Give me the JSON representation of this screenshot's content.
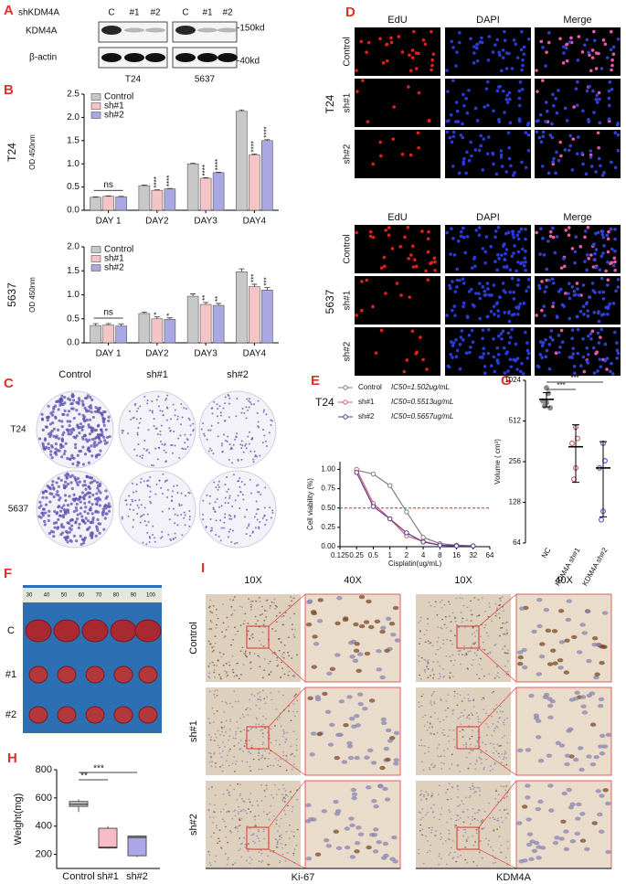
{
  "chart_data": [
    {
      "type": "bar",
      "panel": "B",
      "side_label": "T24",
      "y_label": "OD 450nm",
      "categories": [
        "DAY 1",
        "DAY2",
        "DAY3",
        "DAY4"
      ],
      "series": [
        {
          "name": "Control",
          "color": "#c8c8c8",
          "values": [
            0.28,
            0.53,
            1.0,
            2.13
          ],
          "errors": [
            0.01,
            0.01,
            0.01,
            0.03
          ],
          "sig_labels": [
            null,
            null,
            null,
            null
          ]
        },
        {
          "name": "sh#1",
          "color": "#f5c4c6",
          "values": [
            0.3,
            0.43,
            0.69,
            1.19
          ],
          "errors": [
            0.01,
            0.01,
            0.01,
            0.02
          ],
          "sig_labels": [
            null,
            "****",
            "****",
            "****"
          ]
        },
        {
          "name": "sh#2",
          "color": "#aaa8e2",
          "values": [
            0.29,
            0.46,
            0.81,
            1.5
          ],
          "errors": [
            0.01,
            0.01,
            0.01,
            0.02
          ],
          "sig_labels": [
            null,
            "****",
            "****",
            "****"
          ]
        }
      ],
      "ylim": [
        0,
        2.5
      ],
      "yticks": [
        {
          "value": 0,
          "label": "0.0"
        },
        0.5,
        {
          "value": 1,
          "label": "1.0"
        },
        1.5,
        {
          "value": 2,
          "label": "2.0"
        },
        2.5
      ],
      "annotations": [
        "ns"
      ]
    },
    {
      "type": "bar",
      "side_label": "5637",
      "y_label": "OD 450nm",
      "categories": [
        "DAY 1",
        "DAY2",
        "DAY3",
        "DAY4"
      ],
      "series": [
        {
          "name": "Control",
          "color": "#c8c8c8",
          "values": [
            0.36,
            0.61,
            0.97,
            1.48
          ],
          "errors": [
            0.04,
            0.03,
            0.05,
            0.06
          ],
          "sig_labels": [
            null,
            null,
            null,
            null
          ]
        },
        {
          "name": "sh#1",
          "color": "#f5c4c6",
          "values": [
            0.37,
            0.5,
            0.8,
            1.17
          ],
          "errors": [
            0.03,
            0.04,
            0.04,
            0.05
          ],
          "sig_labels": [
            null,
            "*",
            "**",
            "***"
          ]
        },
        {
          "name": "sh#2",
          "color": "#aaa8e2",
          "values": [
            0.35,
            0.49,
            0.78,
            1.1
          ],
          "errors": [
            0.04,
            0.03,
            0.04,
            0.05
          ],
          "sig_labels": [
            null,
            "*",
            "**",
            "***"
          ]
        }
      ],
      "ylim": [
        0,
        2.0
      ],
      "yticks": [
        {
          "value": 0,
          "label": "0.0"
        },
        0.5,
        {
          "value": 1,
          "label": "1.0"
        },
        1.5,
        {
          "value": 2,
          "label": "2.0"
        }
      ],
      "annotations": [
        "ns"
      ]
    },
    {
      "type": "line",
      "panel": "E",
      "title": "T24",
      "x_label": "Cisplatin(ug/mL)",
      "y_label": "Cell viability (%)",
      "log_x": true,
      "x": [
        0.25,
        0.5,
        1,
        2,
        4,
        8,
        16,
        32
      ],
      "series": [
        {
          "name": "Control",
          "ic50_label": "IC50=1.502ug/mL",
          "color": "#7f7f7f",
          "values": [
            0.99,
            0.94,
            0.79,
            0.45,
            0.12,
            0.04,
            0.02,
            0.01
          ]
        },
        {
          "name": "sh#1",
          "ic50_label": "IC50=0.5513ug/mL",
          "color": "#d0606e",
          "values": [
            1.0,
            0.56,
            0.36,
            0.14,
            0.07,
            0.02,
            0.01,
            0.01
          ]
        },
        {
          "name": "sh#2",
          "ic50_label": "IC50=0.5657ug/mL",
          "color": "#5b3a8c",
          "values": [
            0.96,
            0.52,
            0.36,
            0.18,
            0.06,
            0.02,
            0.01,
            0.01
          ]
        }
      ],
      "xlim": [
        0.125,
        64
      ],
      "xticks": [
        0.125,
        0.25,
        0.5,
        1,
        2,
        4,
        8,
        16,
        32,
        64
      ],
      "ylim": [
        0,
        1.1
      ],
      "yticks": [
        {
          "value": 0,
          "label": "0.00"
        },
        0.25,
        {
          "value": 0.5,
          "label": "0.50"
        },
        0.75,
        {
          "value": 1,
          "label": "1.00"
        }
      ],
      "reference_line": {
        "value": 0.5,
        "color": "#d62728"
      }
    },
    {
      "type": "scatter",
      "panel": "G",
      "y_label": "Volume ( cm³)",
      "log_y": true,
      "groups": [
        {
          "name": "NC",
          "color": "#8c8c8c",
          "values": [
            900,
            820,
            720,
            700,
            660,
            640
          ],
          "mean": 740,
          "sd": 90
        },
        {
          "name": "KDM4A sh#1",
          "color": "#d0606e",
          "values": [
            460,
            380,
            350,
            230,
            190
          ],
          "mean": 330,
          "sd": 150
        },
        {
          "name": "KDM4A sh#2",
          "color": "#5b5fc7",
          "values": [
            350,
            260,
            230,
            110,
            95
          ],
          "mean": 230,
          "sd": 130
        }
      ],
      "ylim": [
        64,
        1024
      ],
      "yticks": [
        64,
        128,
        256,
        512,
        1024
      ],
      "annotations": [
        "***",
        "***"
      ]
    },
    {
      "type": "box",
      "panel": "H",
      "y_label": "Weight(mg)",
      "categories": [
        "Control",
        "sh#1",
        "sh#2"
      ],
      "colors": [
        "#c4c4c4",
        "#f5bcc6",
        "#aba7e8"
      ],
      "stats": [
        {
          "min": 500,
          "q1": 540,
          "median": 555,
          "q3": 575,
          "max": 590
        },
        {
          "min": 240,
          "q1": 245,
          "median": 250,
          "q3": 385,
          "max": 400
        },
        {
          "min": 180,
          "q1": 190,
          "median": 320,
          "q3": 330,
          "max": 335
        }
      ],
      "ylim": [
        100,
        800
      ],
      "yticks": [
        200,
        400,
        600,
        800
      ],
      "annotations": [
        "**",
        "***"
      ]
    }
  ],
  "figure": {
    "A": {
      "letter": "A",
      "header": "shKDM4A",
      "lanes": [
        "C",
        "#1",
        "#2",
        "C",
        "#1",
        "#2"
      ],
      "rows": [
        "KDM4A",
        "β-actin"
      ],
      "markers": [
        "-150kd",
        "-40kd"
      ],
      "cell_lines": [
        "T24",
        "5637"
      ]
    },
    "C": {
      "letter": "C",
      "columns": [
        "Control",
        "sh#1",
        "sh#2"
      ],
      "rows": [
        "T24",
        "5637"
      ]
    },
    "D": {
      "letter": "D",
      "blocks": [
        {
          "cell_line": "T24",
          "columns": [
            "EdU",
            "DAPI",
            "Merge"
          ],
          "rows": [
            "Control",
            "sh#1",
            "sh#2"
          ]
        },
        {
          "cell_line": "5637",
          "columns": [
            "EdU",
            "DAPI",
            "Merge"
          ],
          "rows": [
            "Control",
            "sh#1",
            "sh#2"
          ]
        }
      ]
    },
    "F": {
      "letter": "F",
      "rows": [
        "C",
        "#1",
        "#2"
      ],
      "ruler": [
        "30",
        "40",
        "50",
        "60",
        "70",
        "80",
        "90",
        "100"
      ]
    },
    "I": {
      "letter": "I",
      "magnifications": [
        "10X",
        "40X",
        "10X",
        "40X"
      ],
      "rows": [
        "Control",
        "sh#1",
        "sh#2"
      ],
      "stains": [
        "Ki-67",
        "KDM4A"
      ]
    }
  }
}
